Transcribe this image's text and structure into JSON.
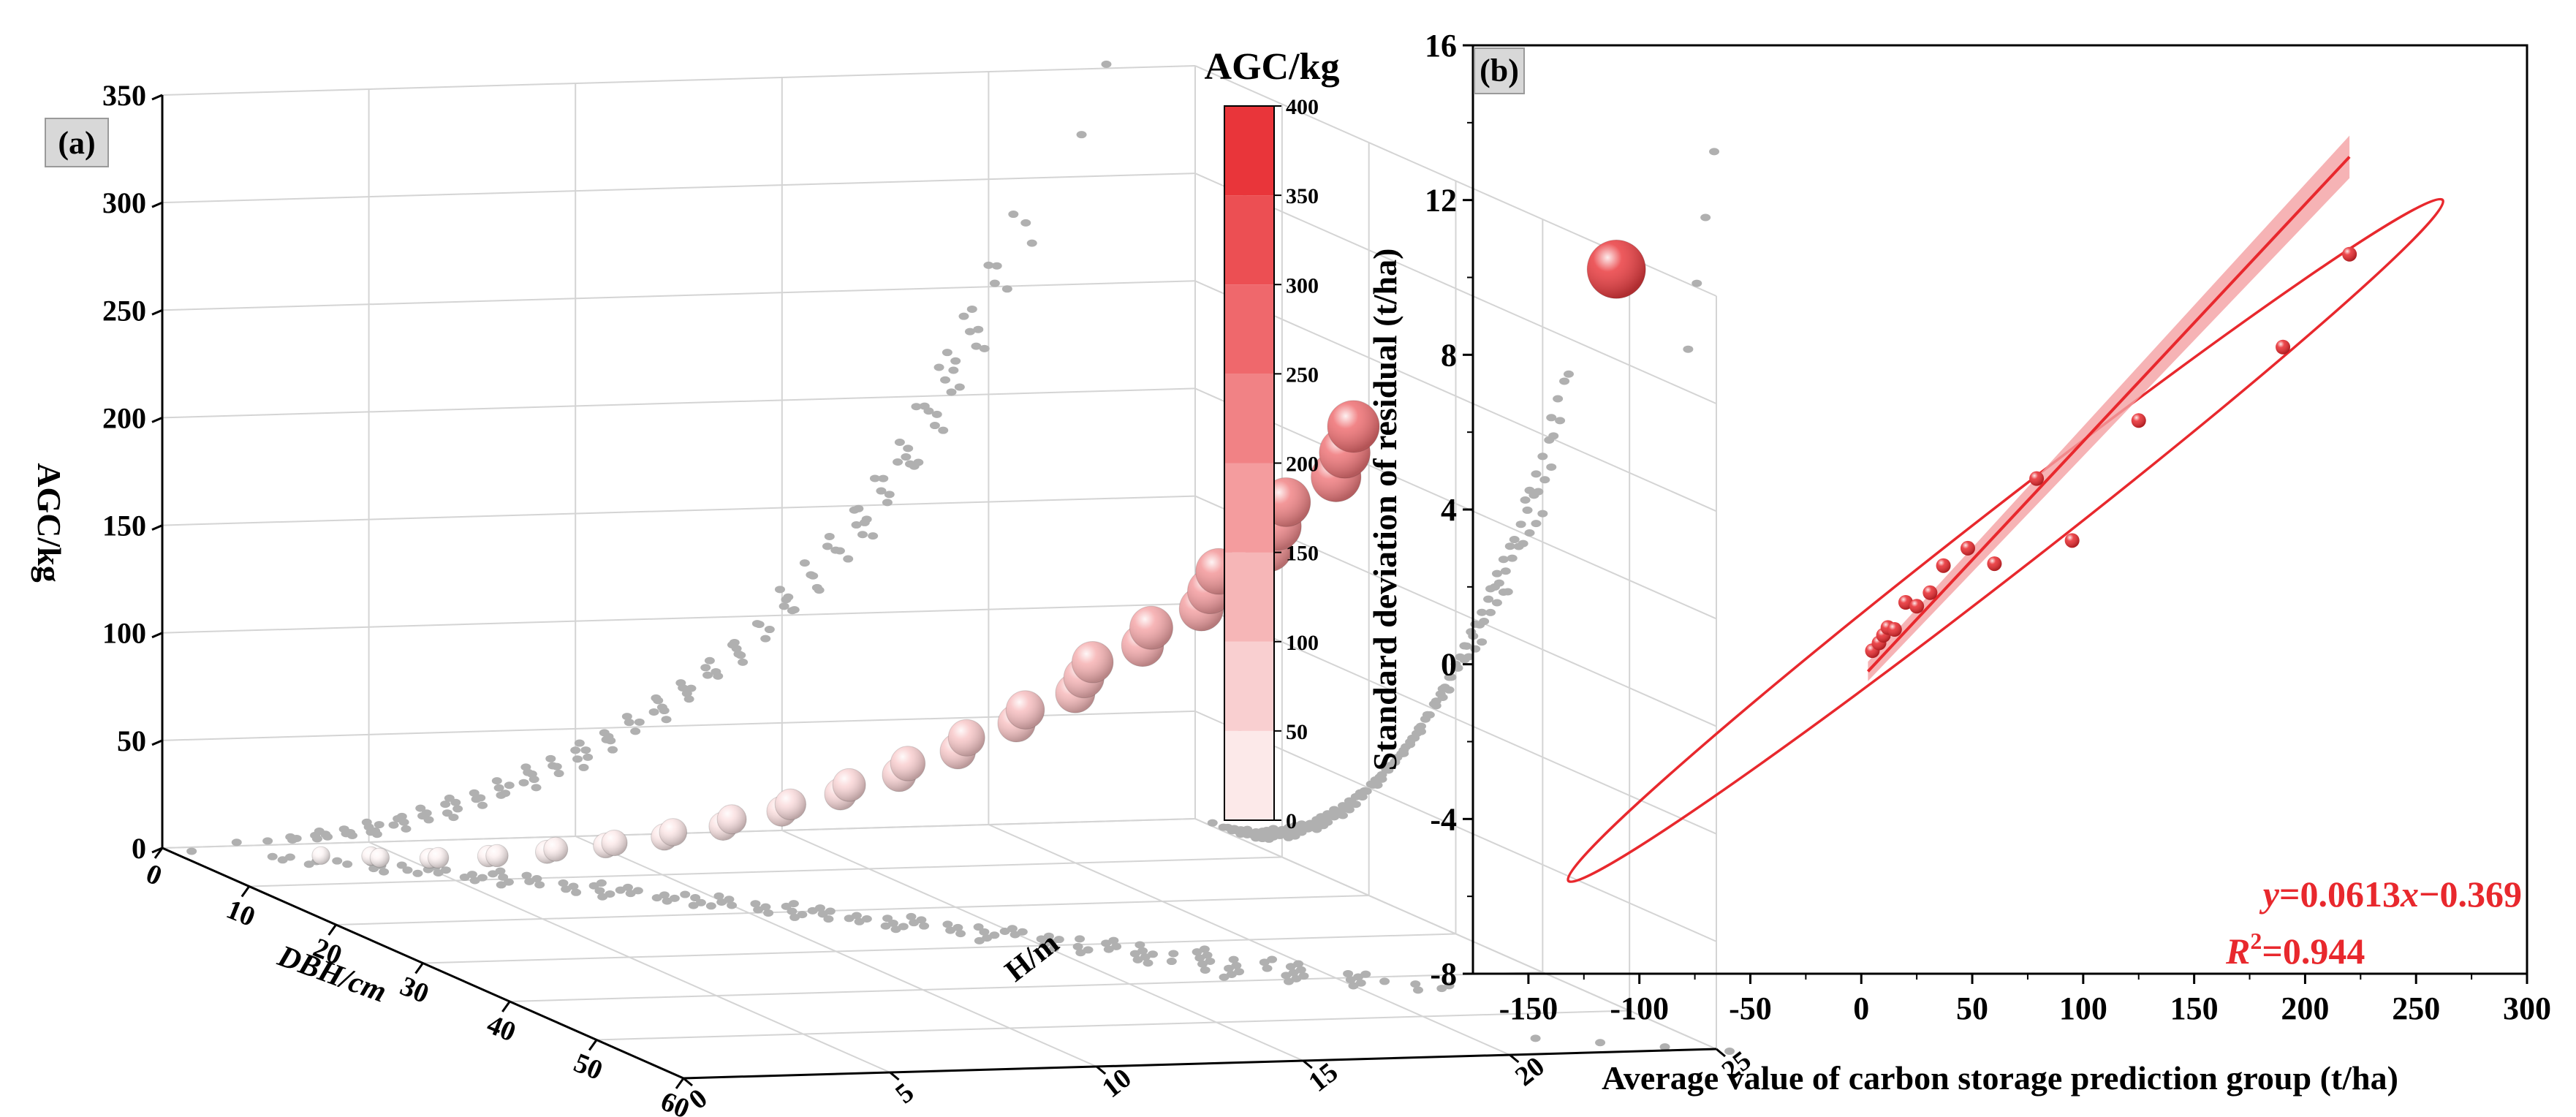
{
  "colors": {
    "accent": "#e8282d",
    "grey_points": "#b0b0b0",
    "grid": "#d4d4d4",
    "axis": "#000000",
    "band": "#f4a0a2",
    "panel_label_bg": "#d8d8d8"
  },
  "chart_data": [
    {
      "panel": "(a)",
      "type": "scatter3d",
      "title": "",
      "colorbar_title": "AGC/kg",
      "colorbar_ticks": [
        "0",
        "50",
        "100",
        "150",
        "200",
        "250",
        "300",
        "350",
        "400"
      ],
      "colorbar_range": [
        0,
        400
      ],
      "z_axis": {
        "label": "AGC/kg",
        "range": [
          0,
          350
        ],
        "ticks": [
          "0",
          "50",
          "100",
          "150",
          "200",
          "250",
          "300",
          "350"
        ]
      },
      "x_axis": {
        "label": "DBH/cm",
        "range": [
          0,
          60
        ],
        "ticks": [
          "0",
          "10",
          "20",
          "30",
          "40",
          "50",
          "60"
        ]
      },
      "y_axis": {
        "label": "H/m",
        "range": [
          0,
          25
        ],
        "ticks": [
          "0",
          "5",
          "10",
          "15",
          "20",
          "25"
        ]
      },
      "bubbles": [
        {
          "dbh": 4,
          "h": 3,
          "agc": 2
        },
        {
          "dbh": 5,
          "h": 4,
          "agc": 3
        },
        {
          "dbh": 6,
          "h": 4,
          "agc": 4
        },
        {
          "dbh": 7,
          "h": 5,
          "agc": 5
        },
        {
          "dbh": 8,
          "h": 5,
          "agc": 7
        },
        {
          "dbh": 9,
          "h": 6,
          "agc": 9
        },
        {
          "dbh": 10,
          "h": 6,
          "agc": 11
        },
        {
          "dbh": 11,
          "h": 7,
          "agc": 14
        },
        {
          "dbh": 12,
          "h": 7,
          "agc": 17
        },
        {
          "dbh": 13,
          "h": 8,
          "agc": 20
        },
        {
          "dbh": 14,
          "h": 8,
          "agc": 23
        },
        {
          "dbh": 15,
          "h": 9,
          "agc": 27
        },
        {
          "dbh": 16,
          "h": 9,
          "agc": 31
        },
        {
          "dbh": 17,
          "h": 10,
          "agc": 35
        },
        {
          "dbh": 18,
          "h": 10,
          "agc": 40
        },
        {
          "dbh": 19,
          "h": 11,
          "agc": 45
        },
        {
          "dbh": 20,
          "h": 11,
          "agc": 50
        },
        {
          "dbh": 21,
          "h": 12,
          "agc": 56
        },
        {
          "dbh": 22,
          "h": 12,
          "agc": 62
        },
        {
          "dbh": 23,
          "h": 13,
          "agc": 68
        },
        {
          "dbh": 24,
          "h": 13,
          "agc": 75
        },
        {
          "dbh": 25,
          "h": 14,
          "agc": 82
        },
        {
          "dbh": 26,
          "h": 14,
          "agc": 90
        },
        {
          "dbh": 27,
          "h": 15,
          "agc": 98
        },
        {
          "dbh": 28,
          "h": 15,
          "agc": 106
        },
        {
          "dbh": 29,
          "h": 16,
          "agc": 115
        },
        {
          "dbh": 30,
          "h": 16,
          "agc": 124
        },
        {
          "dbh": 31,
          "h": 16,
          "agc": 133
        },
        {
          "dbh": 32,
          "h": 17,
          "agc": 142
        },
        {
          "dbh": 33,
          "h": 17,
          "agc": 152
        },
        {
          "dbh": 34,
          "h": 18,
          "agc": 162
        },
        {
          "dbh": 35,
          "h": 18,
          "agc": 172
        },
        {
          "dbh": 36,
          "h": 18,
          "agc": 183
        },
        {
          "dbh": 37,
          "h": 19,
          "agc": 195
        },
        {
          "dbh": 38,
          "h": 19,
          "agc": 207
        },
        {
          "dbh": 39,
          "h": 19,
          "agc": 220
        },
        {
          "dbh": 40,
          "h": 20,
          "agc": 233
        },
        {
          "dbh": 41,
          "h": 20,
          "agc": 246
        },
        {
          "dbh": 42,
          "h": 20,
          "agc": 260
        },
        {
          "dbh": 58,
          "h": 23,
          "agc": 360
        }
      ]
    },
    {
      "panel": "(b)",
      "type": "scatter",
      "title": "",
      "xlabel": "Average value of carbon storage prediction group (t/ha)",
      "ylabel": "Standard deviation of residual (t/ha)",
      "xlim": [
        -175,
        300
      ],
      "ylim": [
        -8,
        16
      ],
      "xticks": [
        "-150",
        "-100",
        "-50",
        "0",
        "50",
        "100",
        "150",
        "200",
        "250",
        "300"
      ],
      "yticks": [
        "-8",
        "-4",
        "0",
        "4",
        "8",
        "12",
        "16"
      ],
      "points": [
        {
          "x": 5,
          "y": 0.35
        },
        {
          "x": 8,
          "y": 0.55
        },
        {
          "x": 10,
          "y": 0.75
        },
        {
          "x": 12,
          "y": 0.95
        },
        {
          "x": 15,
          "y": 0.9
        },
        {
          "x": 20,
          "y": 1.6
        },
        {
          "x": 25,
          "y": 1.5
        },
        {
          "x": 31,
          "y": 1.85
        },
        {
          "x": 37,
          "y": 2.55
        },
        {
          "x": 48,
          "y": 3.0
        },
        {
          "x": 60,
          "y": 2.6
        },
        {
          "x": 79,
          "y": 4.8
        },
        {
          "x": 95,
          "y": 3.2
        },
        {
          "x": 125,
          "y": 6.3
        },
        {
          "x": 190,
          "y": 8.2
        },
        {
          "x": 220,
          "y": 10.6
        }
      ],
      "fit": {
        "slope": 0.0613,
        "intercept": -0.369,
        "x_range": [
          3,
          220
        ]
      },
      "equation_text": "=0.0613",
      "equation_var_y": "y",
      "equation_var_x": "x",
      "equation_tail": "−0.369",
      "r2_var": "R",
      "r2_sup": "2",
      "r2_text": "=0.944"
    }
  ]
}
